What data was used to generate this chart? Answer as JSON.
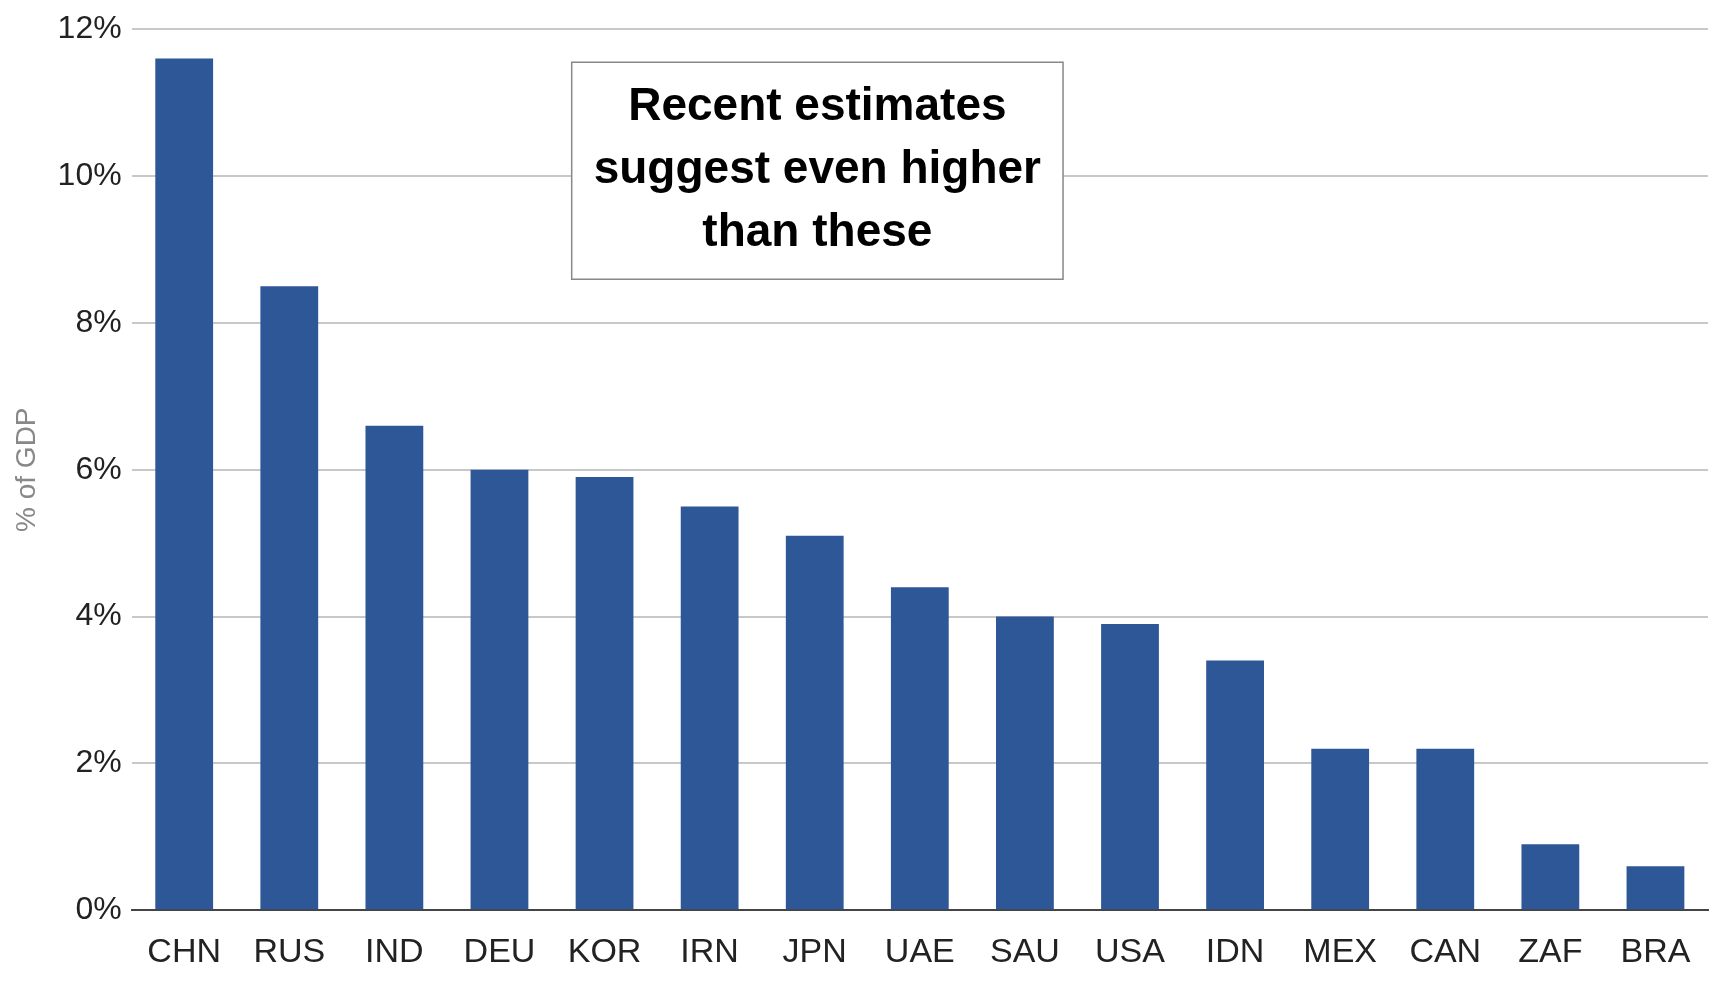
{
  "chart_data": {
    "type": "bar",
    "ylabel": "% of GDP",
    "categories": [
      "CHN",
      "RUS",
      "IND",
      "DEU",
      "KOR",
      "IRN",
      "JPN",
      "UAE",
      "SAU",
      "USA",
      "IDN",
      "MEX",
      "CAN",
      "ZAF",
      "BRA"
    ],
    "values": [
      11.6,
      8.5,
      6.6,
      6.0,
      5.9,
      5.5,
      5.1,
      4.4,
      4.0,
      3.9,
      3.4,
      2.2,
      2.2,
      0.9,
      0.6
    ],
    "color": "#2e5797",
    "ylim": [
      0,
      12
    ],
    "yticks": [
      {
        "value": 0,
        "label": "0%"
      },
      {
        "value": 2,
        "label": "2%"
      },
      {
        "value": 4,
        "label": "4%"
      },
      {
        "value": 6,
        "label": "6%"
      },
      {
        "value": 8,
        "label": "8%"
      },
      {
        "value": 10,
        "label": "10%"
      },
      {
        "value": 12,
        "label": "12%"
      }
    ],
    "grid": "y",
    "legend": false,
    "annotations": [
      "Recent estimates suggest even higher than these"
    ]
  }
}
